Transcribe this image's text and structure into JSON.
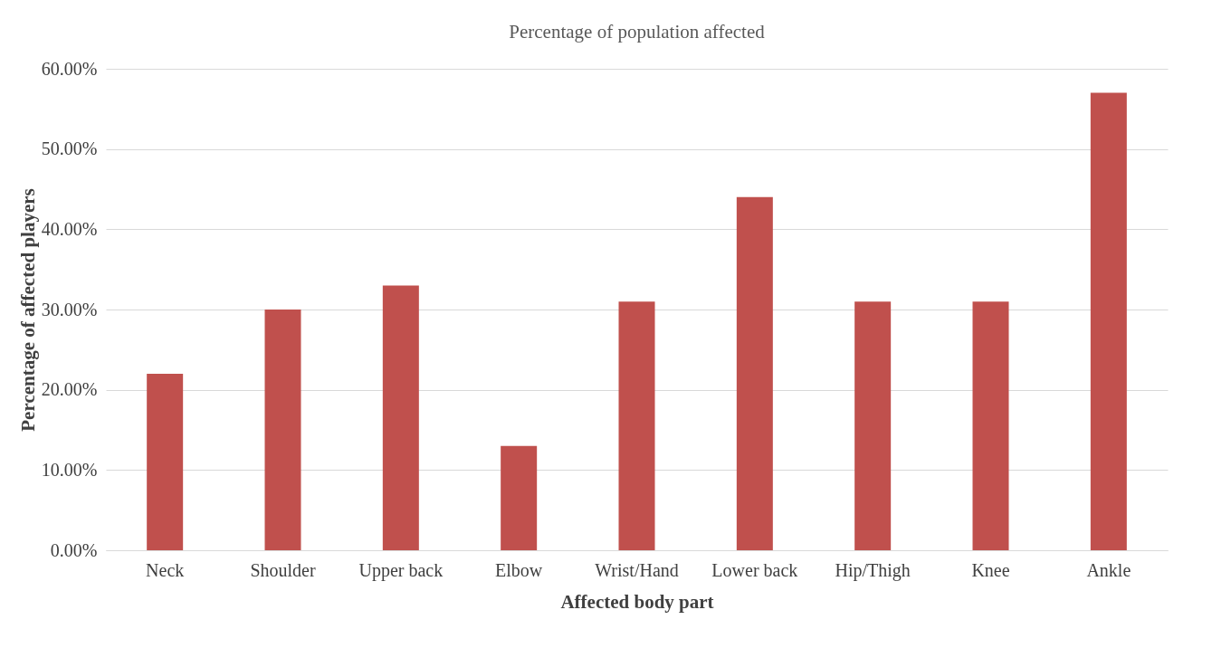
{
  "chart_data": {
    "type": "bar",
    "title": "Percentage of population affected",
    "xlabel": "Affected body part",
    "ylabel": "Percentage of affected players",
    "categories": [
      "Neck",
      "Shoulder",
      "Upper back",
      "Elbow",
      "Wrist/Hand",
      "Lower back",
      "Hip/Thigh",
      "Knee",
      "Ankle"
    ],
    "values": [
      22,
      30,
      33,
      13,
      31,
      44,
      31,
      31,
      57
    ],
    "color": "#c0504d",
    "ylim": [
      0,
      60
    ],
    "yticks": [
      {
        "value": 0,
        "label": "0.00%"
      },
      {
        "value": 10,
        "label": "10.00%"
      },
      {
        "value": 20,
        "label": "20.00%"
      },
      {
        "value": 30,
        "label": "30.00%"
      },
      {
        "value": 40,
        "label": "40.00%"
      },
      {
        "value": 50,
        "label": "50.00%"
      },
      {
        "value": 60,
        "label": "60.00%"
      }
    ],
    "grid": "y"
  }
}
